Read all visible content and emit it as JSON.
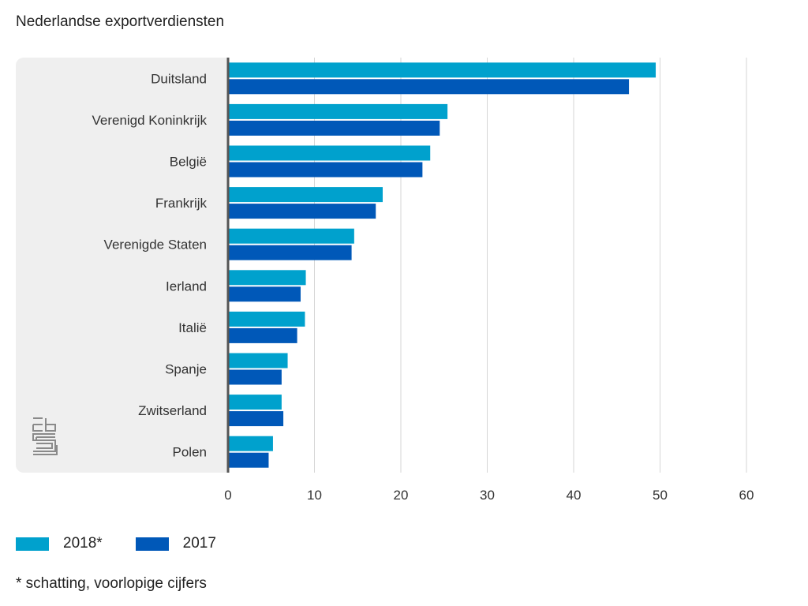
{
  "chart_data": {
    "type": "bar",
    "orientation": "horizontal",
    "title": "Nederlandse exportverdiensten",
    "xlabel": "",
    "ylabel": "",
    "xlim": [
      0,
      60
    ],
    "x_ticks": [
      0,
      10,
      20,
      30,
      40,
      50,
      60
    ],
    "grid": true,
    "legend_position": "bottom-left",
    "categories": [
      "Duitsland",
      "Verenigd Koninkrijk",
      "België",
      "Frankrijk",
      "Verenigde Staten",
      "Ierland",
      "Italië",
      "Spanje",
      "Zwitserland",
      "Polen"
    ],
    "series": [
      {
        "name": "2018*",
        "color": "#00a1cd",
        "values": [
          49.5,
          25.4,
          23.4,
          17.9,
          14.6,
          9.0,
          8.9,
          6.9,
          6.2,
          5.2
        ]
      },
      {
        "name": "2017",
        "color": "#0058b8",
        "values": [
          46.4,
          24.5,
          22.5,
          17.1,
          14.3,
          8.4,
          8.0,
          6.2,
          6.4,
          4.7
        ]
      }
    ],
    "footnote": "* schatting, voorlopige cijfers"
  },
  "logo": "cbs-logo-icon"
}
